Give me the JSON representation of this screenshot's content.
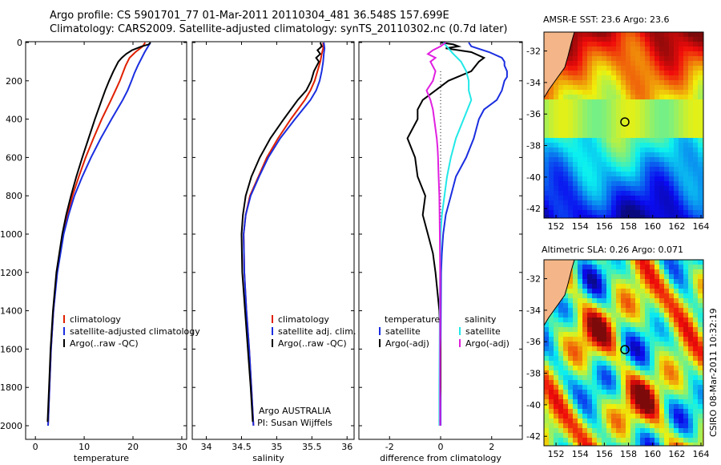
{
  "title": {
    "line1": "Argo profile: CS 5901701_77 01-Mar-2011 20110304_481 36.548S 157.699E",
    "line2": "Climatology: CARS2009. Satellite-adjusted climatology: synTS_20110302.nc (0.7d later)"
  },
  "footer_stamp": "CSIRO 08-Mar-2011 10:32:19",
  "colors": {
    "red": "#e02000",
    "blue": "#1a2ee0",
    "black": "#000000",
    "cyan": "#22e8e8",
    "magenta": "#e020e0",
    "land": "#f4b688"
  },
  "chart_data": [
    {
      "type": "line",
      "id": "temperature",
      "xlabel": "temperature",
      "ylabel": "",
      "xlim": [
        -2,
        31
      ],
      "ylim": [
        2050,
        0
      ],
      "xticks": [
        0,
        10,
        20,
        30
      ],
      "yticks": [
        0,
        200,
        400,
        600,
        800,
        1000,
        1200,
        1400,
        1600,
        1800,
        2000
      ],
      "legend": [
        "climatology",
        "satellite-adjusted climatology",
        "Argo(..raw -QC)"
      ],
      "series": [
        {
          "name": "climatology",
          "color": "red",
          "depth": [
            0,
            20,
            50,
            80,
            120,
            160,
            200,
            250,
            300,
            400,
            500,
            600,
            700,
            800,
            900,
            1000,
            1200,
            1400,
            1600,
            1800,
            2000
          ],
          "value": [
            22.5,
            22.0,
            20.5,
            19.3,
            18.5,
            17.9,
            17.3,
            16.4,
            15.5,
            13.6,
            11.9,
            10.3,
            8.9,
            7.6,
            6.6,
            5.6,
            4.4,
            3.7,
            3.2,
            2.9,
            2.6
          ]
        },
        {
          "name": "satellite-adjusted climatology",
          "color": "blue",
          "depth": [
            0,
            20,
            50,
            80,
            120,
            160,
            200,
            250,
            300,
            400,
            500,
            600,
            700,
            800,
            900,
            1000,
            1200,
            1400,
            1600,
            1800,
            2000
          ],
          "value": [
            23.6,
            23.1,
            22.4,
            21.8,
            21.0,
            20.3,
            19.7,
            18.9,
            17.9,
            15.6,
            13.4,
            11.4,
            9.6,
            8.0,
            6.8,
            5.8,
            4.5,
            3.7,
            3.2,
            2.9,
            2.6
          ]
        },
        {
          "name": "Argo(..raw -QC)",
          "color": "black",
          "depth": [
            0,
            10,
            20,
            40,
            60,
            80,
            100,
            150,
            200,
            250,
            300,
            400,
            500,
            600,
            700,
            800,
            900,
            1000,
            1200,
            1400,
            1600,
            1800,
            1980
          ],
          "value": [
            23.6,
            23.2,
            21.8,
            19.8,
            18.6,
            17.7,
            17.0,
            16.0,
            15.1,
            14.3,
            13.6,
            12.2,
            10.9,
            9.6,
            8.4,
            7.3,
            6.3,
            5.5,
            4.3,
            3.6,
            3.1,
            2.8,
            2.5
          ]
        }
      ]
    },
    {
      "type": "line",
      "id": "salinity",
      "xlabel": "salinity",
      "ylabel": "",
      "xlim": [
        33.8,
        36.1
      ],
      "ylim": [
        2050,
        0
      ],
      "xticks": [
        34,
        34.5,
        35,
        35.5,
        36
      ],
      "legend": [
        "climatology",
        "satellite adj. clim.",
        "Argo(..raw -QC)"
      ],
      "annotation": [
        "Argo AUSTRALIA",
        "PI: Susan Wijffels"
      ],
      "series": [
        {
          "name": "climatology",
          "color": "red",
          "depth": [
            0,
            30,
            60,
            100,
            150,
            200,
            250,
            300,
            400,
            500,
            600,
            700,
            800,
            900,
            1000,
            1200,
            1400,
            1600,
            1800,
            2000
          ],
          "value": [
            35.66,
            35.66,
            35.64,
            35.62,
            35.58,
            35.54,
            35.48,
            35.4,
            35.2,
            35.02,
            34.86,
            34.74,
            34.62,
            34.56,
            34.53,
            34.54,
            34.57,
            34.61,
            34.64,
            34.67
          ]
        },
        {
          "name": "satellite adj. clim.",
          "color": "blue",
          "depth": [
            0,
            30,
            60,
            100,
            150,
            200,
            250,
            300,
            400,
            500,
            600,
            700,
            800,
            900,
            1000,
            1200,
            1400,
            1600,
            1800,
            2000
          ],
          "value": [
            35.67,
            35.68,
            35.67,
            35.66,
            35.64,
            35.61,
            35.56,
            35.48,
            35.26,
            35.05,
            34.88,
            34.75,
            34.63,
            34.56,
            34.53,
            34.54,
            34.57,
            34.61,
            34.64,
            34.67
          ]
        },
        {
          "name": "Argo(..raw -QC)",
          "color": "black",
          "depth": [
            0,
            20,
            40,
            60,
            80,
            100,
            150,
            200,
            250,
            300,
            400,
            500,
            600,
            700,
            800,
            900,
            1000,
            1200,
            1400,
            1600,
            1800,
            1980
          ],
          "value": [
            35.62,
            35.64,
            35.58,
            35.62,
            35.56,
            35.6,
            35.53,
            35.49,
            35.42,
            35.3,
            35.1,
            34.91,
            34.76,
            34.64,
            34.56,
            34.52,
            34.5,
            34.51,
            34.55,
            34.59,
            34.63,
            34.66
          ]
        }
      ]
    },
    {
      "type": "line",
      "id": "difference",
      "xlabel": "difference from climatology",
      "ylabel": "",
      "xlim": [
        -3.2,
        3.2
      ],
      "ylim": [
        2050,
        0
      ],
      "xticks": [
        -2,
        0,
        2
      ],
      "legend_temperature": {
        "title": "temperature",
        "items": [
          "satellite",
          "Argo(-adj)"
        ]
      },
      "legend_salinity": {
        "title": "salinity",
        "items": [
          "satellite",
          "Argo(-adj)"
        ]
      },
      "series": [
        {
          "name": "temperature satellite",
          "color": "blue",
          "depth": [
            0,
            20,
            50,
            80,
            100,
            120,
            150,
            180,
            200,
            250,
            300,
            350,
            400,
            500,
            600,
            700,
            800,
            900,
            1000,
            1100,
            1200,
            1400,
            1600,
            1800,
            2000
          ],
          "value": [
            1.1,
            1.2,
            1.9,
            2.4,
            2.5,
            2.5,
            2.6,
            2.6,
            2.5,
            2.4,
            2.2,
            1.7,
            1.5,
            1.3,
            1.0,
            0.6,
            0.4,
            0.2,
            0.1,
            0.05,
            0.02,
            0.01,
            0,
            0,
            0
          ]
        },
        {
          "name": "temperature Argo(-adj)",
          "color": "black",
          "depth": [
            0,
            10,
            20,
            30,
            50,
            80,
            100,
            150,
            200,
            250,
            300,
            350,
            400,
            450,
            500,
            600,
            700,
            800,
            900,
            1000,
            1100,
            1200,
            1400,
            1600,
            1800,
            1980
          ],
          "value": [
            0,
            0.5,
            0.7,
            0.2,
            1.2,
            1.7,
            1.5,
            1.2,
            0.3,
            -0.2,
            -0.7,
            -0.9,
            -0.9,
            -1.1,
            -1.3,
            -1.0,
            -0.9,
            -0.6,
            -0.7,
            -0.5,
            -0.3,
            -0.2,
            -0.05,
            0,
            0,
            -0.05
          ]
        },
        {
          "name": "salinity satellite",
          "color": "cyan",
          "depth": [
            0,
            30,
            60,
            100,
            150,
            200,
            250,
            300,
            400,
            500,
            600,
            700,
            800,
            900,
            1000,
            1200,
            1400,
            1600,
            1800,
            2000
          ],
          "value": [
            0.1,
            0.3,
            0.5,
            0.8,
            1.0,
            1.1,
            1.1,
            1.2,
            0.9,
            0.6,
            0.4,
            0.25,
            0.15,
            0.05,
            0,
            -0.02,
            -0.03,
            -0.04,
            -0.05,
            -0.05
          ]
        },
        {
          "name": "salinity Argo(-adj)",
          "color": "magenta",
          "depth": [
            0,
            20,
            40,
            60,
            80,
            100,
            150,
            200,
            250,
            300,
            350,
            400,
            450,
            500,
            550,
            600,
            700,
            800,
            1000,
            1200,
            1400,
            1600,
            1800,
            2000
          ],
          "value": [
            0.2,
            0.0,
            -0.3,
            -0.5,
            -0.2,
            -0.4,
            -0.2,
            -0.3,
            -0.55,
            -0.4,
            -0.3,
            -0.25,
            -0.2,
            -0.15,
            -0.12,
            -0.1,
            -0.08,
            -0.05,
            -0.03,
            -0.02,
            -0.02,
            -0.02,
            -0.02,
            -0.02
          ]
        }
      ]
    },
    {
      "type": "heatmap",
      "id": "sst-map",
      "title": "AMSR-E SST: 23.6 Argo: 23.6",
      "xlim": [
        151,
        164.2
      ],
      "ylim": [
        -42.6,
        -30.8
      ],
      "xticks": [
        152,
        154,
        156,
        158,
        160,
        162,
        164
      ],
      "yticks": [
        -32,
        -34,
        -36,
        -38,
        -40,
        -42
      ],
      "marker": {
        "lon": 157.7,
        "lat": -36.5
      }
    },
    {
      "type": "heatmap",
      "id": "sla-map",
      "title": "Altimetric SLA: 0.26 Argo: 0.071",
      "xlim": [
        151,
        164.2
      ],
      "ylim": [
        -42.6,
        -30.8
      ],
      "xticks": [
        152,
        154,
        156,
        158,
        160,
        162,
        164
      ],
      "yticks": [
        -32,
        -34,
        -36,
        -38,
        -40,
        -42
      ],
      "marker": {
        "lon": 157.7,
        "lat": -36.5
      }
    }
  ]
}
